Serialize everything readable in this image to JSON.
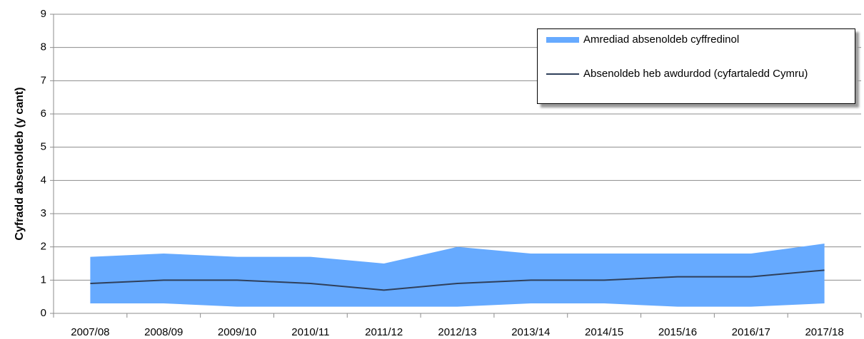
{
  "chart_data": {
    "type": "range-line",
    "y_label": "Cyfradd absenoldeb (y cant)",
    "categories": [
      "2007/08",
      "2008/09",
      "2009/10",
      "2010/11",
      "2011/12",
      "2012/13",
      "2013/14",
      "2014/15",
      "2015/16",
      "2016/17",
      "2017/18"
    ],
    "series": [
      {
        "type": "range",
        "name": "Amrediad absenoldeb cyffredinol",
        "color": "#66aaff",
        "low": [
          0.3,
          0.3,
          0.2,
          0.2,
          0.2,
          0.2,
          0.3,
          0.3,
          0.2,
          0.2,
          0.3
        ],
        "high": [
          1.7,
          1.8,
          1.7,
          1.7,
          1.5,
          2.0,
          1.8,
          1.8,
          1.8,
          1.8,
          2.1
        ]
      },
      {
        "type": "line",
        "name": "Absenoldeb heb awdurdod (cyfartaledd Cymru)",
        "color": "#2f3f5a",
        "values": [
          0.9,
          1.0,
          1.0,
          0.9,
          0.7,
          0.9,
          1.0,
          1.0,
          1.1,
          1.1,
          1.3
        ]
      }
    ],
    "ylim": [
      0,
      9
    ],
    "yticks": [
      0,
      1,
      2,
      3,
      4,
      5,
      6,
      7,
      8,
      9
    ],
    "grid": true
  }
}
